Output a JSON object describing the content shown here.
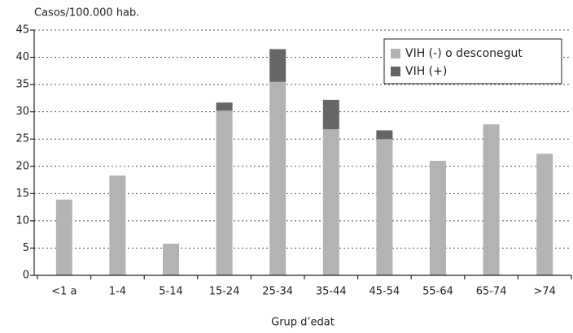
{
  "chart_data": {
    "type": "stacked_bar",
    "y_label": "Casos/100.000 hab.",
    "x_label": "Grup d’edat",
    "categories": [
      "<1 a",
      "1-4",
      "5-14",
      "15-24",
      "25-34",
      "35-44",
      "45-54",
      "55-64",
      "65-74",
      ">74"
    ],
    "series": [
      {
        "name": "VIH (-) o desconegut",
        "color": "#b3b3b3",
        "values": [
          13.9,
          18.3,
          5.8,
          30.2,
          35.5,
          26.8,
          25.0,
          21.0,
          27.7,
          22.3
        ]
      },
      {
        "name": "VIH (+)",
        "color": "#666666",
        "values": [
          0,
          0,
          0,
          1.5,
          6.0,
          5.4,
          1.6,
          0,
          0,
          0
        ]
      }
    ],
    "ylim": [
      0,
      45
    ],
    "yticks": [
      0,
      5,
      10,
      15,
      20,
      25,
      30,
      35,
      40,
      45
    ],
    "grid": true,
    "legend": "top-right"
  }
}
